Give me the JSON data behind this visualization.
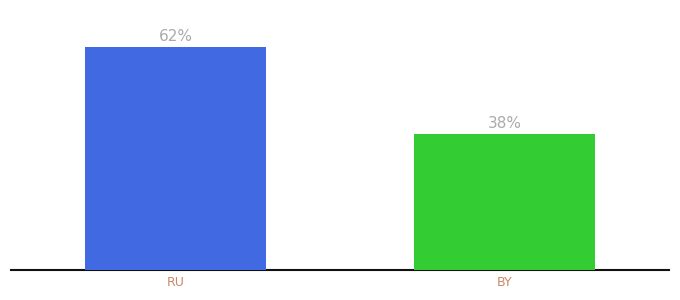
{
  "categories": [
    "RU",
    "BY"
  ],
  "values": [
    62,
    38
  ],
  "bar_colors": [
    "#4169e1",
    "#33cc33"
  ],
  "label_texts": [
    "62%",
    "38%"
  ],
  "label_color": "#aaaaaa",
  "tick_label_color": "#cc8866",
  "background_color": "#ffffff",
  "ylim": [
    0,
    72
  ],
  "bar_width": 0.55,
  "label_fontsize": 11,
  "tick_fontsize": 9,
  "spine_color": "#111111",
  "xlim": [
    -0.5,
    1.5
  ]
}
